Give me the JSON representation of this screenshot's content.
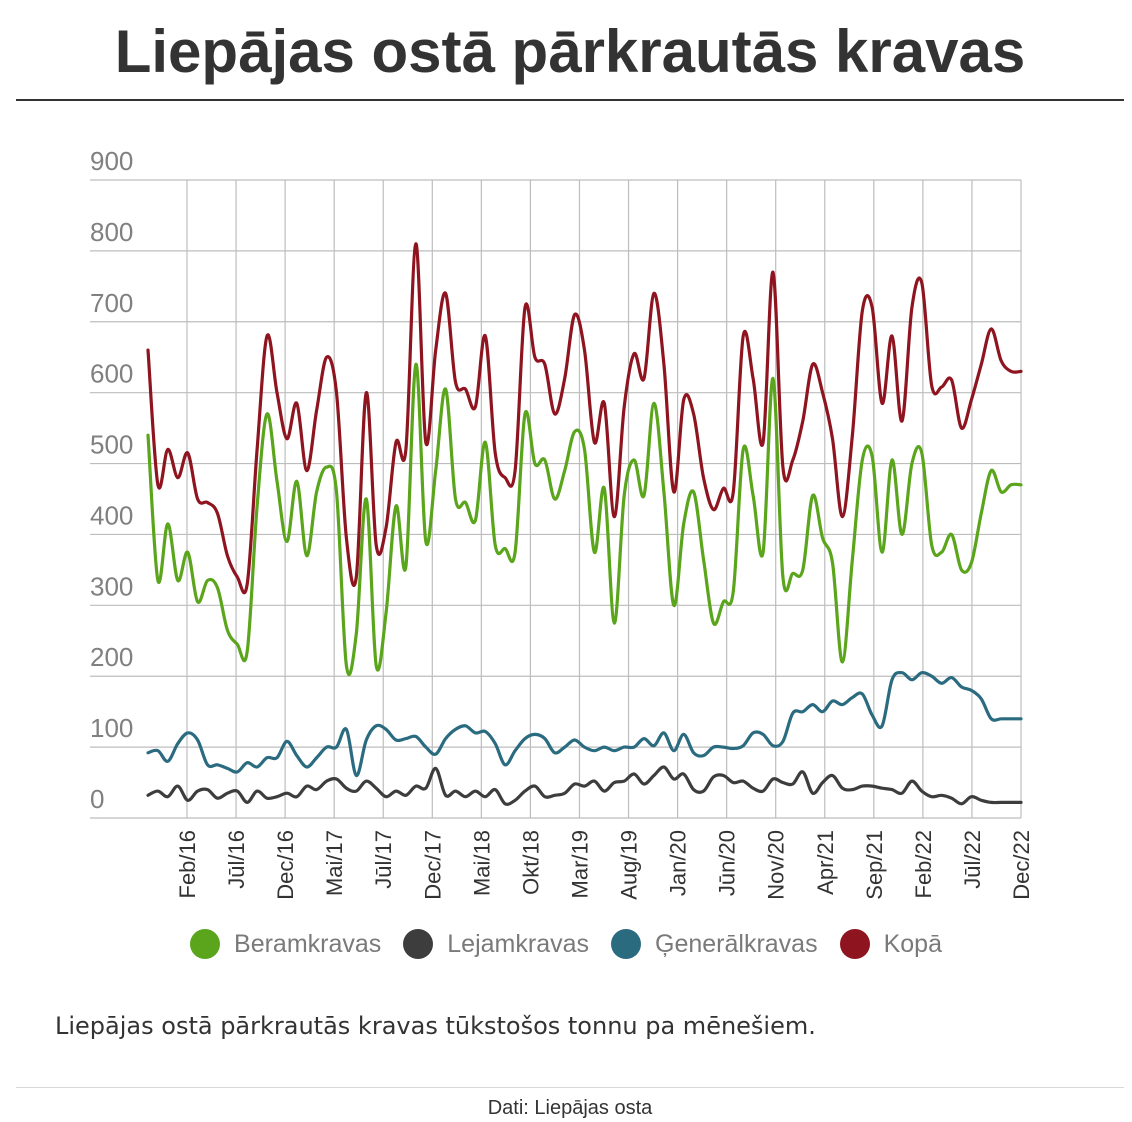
{
  "title": "Liepājas ostā pārkrautās kravas",
  "caption": "Liepājas ostā pārkrautās kravas tūkstošos tonnu pa mēnešiem.",
  "source": "Dati: Liepājas osta",
  "legend": [
    {
      "label": "Beramkravas",
      "color": "#5aa51c"
    },
    {
      "label": "Lejamkravas",
      "color": "#3d3d3d"
    },
    {
      "label": "Ģenerālkravas",
      "color": "#2b6b80"
    },
    {
      "label": "Kopā",
      "color": "#8e1520"
    }
  ],
  "chart_data": {
    "type": "line",
    "ylim": [
      0,
      900
    ],
    "yticks": [
      0,
      100,
      200,
      300,
      400,
      500,
      600,
      700,
      800,
      900
    ],
    "xlim": [
      0,
      84
    ],
    "xticks": [
      {
        "label": "Feb/16",
        "index": 4
      },
      {
        "label": "Jūl/16",
        "index": 9
      },
      {
        "label": "Dec/16",
        "index": 14
      },
      {
        "label": "Mai/17",
        "index": 19
      },
      {
        "label": "Jūl/17",
        "index": 24
      },
      {
        "label": "Dec/17",
        "index": 29
      },
      {
        "label": "Mai/18",
        "index": 34
      },
      {
        "label": "Okt/18",
        "index": 39
      },
      {
        "label": "Mar/19",
        "index": 44
      },
      {
        "label": "Aug/19",
        "index": 49
      },
      {
        "label": "Jan/20",
        "index": 54
      },
      {
        "label": "Jūn/20",
        "index": 59
      },
      {
        "label": "Nov/20",
        "index": 64
      },
      {
        "label": "Apr/21",
        "index": 69
      },
      {
        "label": "Sep/21",
        "index": 74
      },
      {
        "label": "Feb/22",
        "index": 79
      },
      {
        "label": "Jūl/22",
        "index": 84
      },
      {
        "label": "Dec/22",
        "index": 89
      }
    ],
    "grid": true,
    "legend_position": "bottom",
    "series": [
      {
        "name": "Beramkravas",
        "color": "#5aa51c",
        "values": [
          540,
          335,
          415,
          335,
          375,
          305,
          335,
          325,
          265,
          245,
          235,
          440,
          570,
          475,
          390,
          475,
          370,
          460,
          495,
          460,
          215,
          260,
          450,
          215,
          290,
          440,
          355,
          640,
          390,
          490,
          605,
          450,
          445,
          420,
          530,
          385,
          380,
          375,
          570,
          500,
          505,
          450,
          490,
          545,
          520,
          375,
          465,
          275,
          455,
          505,
          455,
          585,
          460,
          300,
          415,
          460,
          365,
          275,
          305,
          320,
          520,
          455,
          375,
          620,
          340,
          345,
          350,
          455,
          395,
          360,
          220,
          365,
          505,
          510,
          375,
          505,
          400,
          500,
          515,
          385,
          375,
          400,
          350,
          360,
          430,
          490,
          460,
          470,
          470
        ]
      },
      {
        "name": "Lejamkravas",
        "color": "#3d3d3d",
        "values": [
          32,
          38,
          30,
          45,
          25,
          38,
          40,
          28,
          35,
          38,
          22,
          38,
          28,
          30,
          35,
          30,
          45,
          40,
          52,
          55,
          42,
          38,
          52,
          42,
          30,
          38,
          32,
          45,
          42,
          70,
          32,
          38,
          30,
          38,
          30,
          40,
          20,
          25,
          38,
          45,
          30,
          32,
          35,
          48,
          45,
          52,
          38,
          50,
          52,
          62,
          48,
          60,
          72,
          55,
          62,
          40,
          38,
          58,
          60,
          50,
          52,
          42,
          38,
          55,
          50,
          48,
          65,
          35,
          50,
          60,
          42,
          40,
          45,
          45,
          42,
          40,
          35,
          52,
          38,
          30,
          32,
          28,
          20,
          30,
          25,
          22,
          22,
          22,
          22
        ]
      },
      {
        "name": "Ģenerālkravas",
        "color": "#2b6b80",
        "values": [
          92,
          95,
          80,
          105,
          120,
          110,
          75,
          75,
          70,
          65,
          78,
          72,
          85,
          85,
          108,
          88,
          72,
          85,
          100,
          100,
          125,
          60,
          110,
          130,
          125,
          110,
          112,
          115,
          100,
          90,
          112,
          125,
          130,
          120,
          122,
          105,
          75,
          95,
          112,
          118,
          112,
          92,
          100,
          110,
          100,
          95,
          100,
          95,
          100,
          100,
          112,
          102,
          120,
          95,
          118,
          92,
          88,
          100,
          100,
          98,
          102,
          120,
          118,
          102,
          108,
          148,
          150,
          160,
          150,
          165,
          160,
          170,
          175,
          145,
          130,
          195,
          205,
          195,
          205,
          200,
          190,
          198,
          185,
          180,
          168,
          140,
          140,
          140,
          140
        ]
      },
      {
        "name": "Kopā",
        "color": "#8e1520",
        "values": [
          660,
          470,
          520,
          480,
          515,
          450,
          445,
          430,
          370,
          340,
          330,
          520,
          680,
          600,
          535,
          585,
          490,
          575,
          650,
          600,
          395,
          340,
          600,
          385,
          410,
          530,
          520,
          810,
          530,
          660,
          740,
          615,
          605,
          580,
          680,
          515,
          480,
          490,
          720,
          650,
          640,
          570,
          620,
          710,
          660,
          530,
          585,
          425,
          580,
          655,
          620,
          740,
          640,
          460,
          590,
          570,
          480,
          435,
          465,
          460,
          680,
          620,
          530,
          770,
          495,
          505,
          560,
          640,
          600,
          535,
          425,
          540,
          715,
          720,
          585,
          680,
          560,
          720,
          755,
          610,
          608,
          618,
          550,
          590,
          640,
          690,
          645,
          630,
          630
        ]
      }
    ]
  }
}
